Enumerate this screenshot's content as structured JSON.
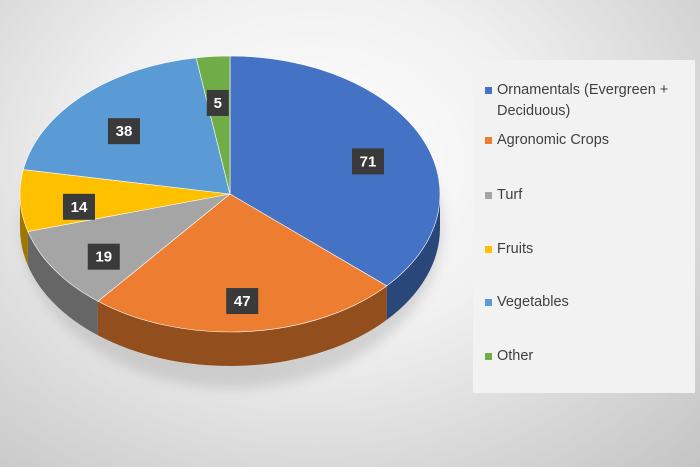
{
  "chart_data": {
    "type": "pie",
    "title": "",
    "categories": [
      "Ornamentals (Evergreen + Deciduous)",
      "Agronomic Crops",
      "Turf",
      "Fruits",
      "Vegetables",
      "Other"
    ],
    "values": [
      71,
      47,
      19,
      14,
      38,
      5
    ],
    "data_labels": [
      "71",
      "47",
      "19",
      "14",
      "38",
      "5"
    ],
    "colors": [
      "#4472c4",
      "#ed7d31",
      "#a5a5a5",
      "#ffc000",
      "#5b9bd5",
      "#70ad47"
    ],
    "style": "3d",
    "legend_position": "right"
  }
}
